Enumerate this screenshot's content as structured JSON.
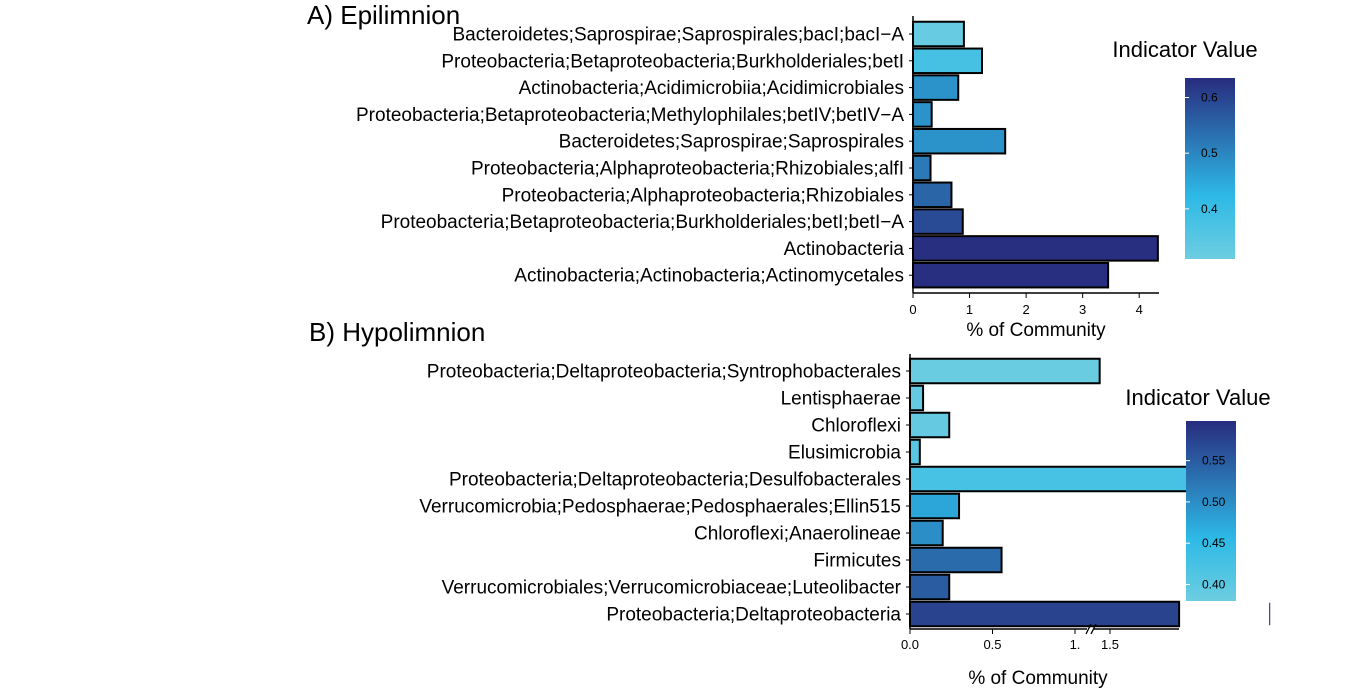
{
  "chart_data": [
    {
      "type": "bar",
      "orientation": "horizontal",
      "title": "A) Epilimnion",
      "xlabel": "% of Community",
      "ylabel": "",
      "xlim": [
        0,
        4.35
      ],
      "xticks": [
        0,
        1,
        2,
        3,
        4
      ],
      "xtick_labels": [
        "0",
        "1",
        "2",
        "3",
        "4"
      ],
      "categories": [
        "Bacteroidetes;Saprospirae;Saprospirales;bacI;bacI−A",
        "Proteobacteria;Betaproteobacteria;Burkholderiales;betI",
        "Actinobacteria;Acidimicrobiia;Acidimicrobiales",
        "Proteobacteria;Betaproteobacteria;Methylophilales;betIV;betIV−A",
        "Bacteroidetes;Saprospirae;Saprospirales",
        "Proteobacteria;Alphaproteobacteria;Rhizobiales;alfI",
        "Proteobacteria;Alphaproteobacteria;Rhizobiales",
        "Proteobacteria;Betaproteobacteria;Burkholderiales;betI;betI−A",
        "Actinobacteria",
        "Actinobacteria;Actinobacteria;Actinomycetales"
      ],
      "values": [
        0.9,
        1.22,
        0.8,
        0.33,
        1.63,
        0.31,
        0.68,
        0.88,
        4.33,
        3.45
      ],
      "indicator_values": [
        0.32,
        0.38,
        0.48,
        0.48,
        0.48,
        0.52,
        0.55,
        0.59,
        0.63,
        0.63
      ],
      "legend": {
        "title": "Indicator Value",
        "placement": "right",
        "min": 0.31,
        "max": 0.635,
        "ticks": [
          0.4,
          0.5,
          0.6
        ],
        "tick_labels": [
          "0.4",
          "0.5",
          "0.6"
        ],
        "color_low": "#6dcde0",
        "color_mid": "#2db9e6",
        "color_high": "#282c7e"
      }
    },
    {
      "type": "bar",
      "orientation": "horizontal",
      "title": "B) Hypolimnion",
      "xlabel": "% of Community",
      "ylabel": "",
      "axis_break_after": 1.1,
      "xticks": [
        0.0,
        0.5,
        1.0,
        1.5
      ],
      "xtick_labels": [
        "0.0",
        "0.5",
        "1.",
        "1.5"
      ],
      "categories": [
        "Proteobacteria;Deltaproteobacteria;Syntrophobacterales",
        "Lentisphaerae",
        "Chloroflexi",
        "Elusimicrobia",
        "Proteobacteria;Deltaproteobacteria;Desulfobacterales",
        "Verrucomicrobia;Pedosphaerae;Pedosphaerales;Ellin515",
        "Chloroflexi;Anaerolineae",
        "Firmicutes",
        "Verrucomicrobiales;Verrucomicrobiaceae;Luteolibacter",
        "Proteobacteria;Deltaproteobacteria"
      ],
      "values": [
        0.58,
        0.04,
        0.12,
        0.03,
        0.92,
        0.15,
        0.1,
        0.28,
        0.12,
        1.93
      ],
      "indicator_values": [
        0.385,
        0.39,
        0.39,
        0.405,
        0.425,
        0.475,
        0.5,
        0.535,
        0.55,
        0.575
      ],
      "legend": {
        "title": "Indicator Value",
        "placement": "right",
        "min": 0.38,
        "max": 0.598,
        "ticks": [
          0.4,
          0.45,
          0.5,
          0.55
        ],
        "tick_labels": [
          "0.40",
          "0.45",
          "0.50",
          "0.55"
        ],
        "color_low": "#6dcde0",
        "color_mid": "#2db9e6",
        "color_high": "#282c7e"
      }
    }
  ]
}
